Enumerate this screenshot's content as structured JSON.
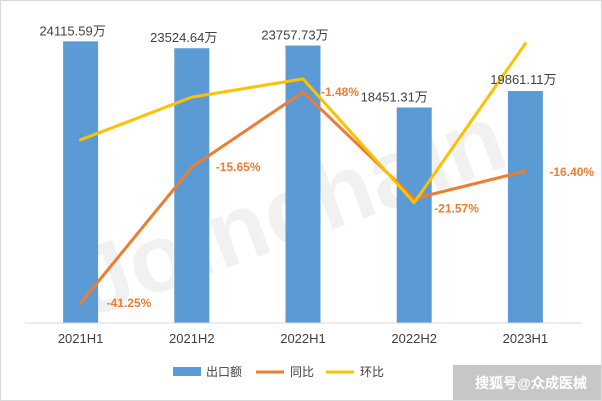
{
  "chart_data": {
    "type": "bar",
    "categories": [
      "2021H1",
      "2021H2",
      "2022H1",
      "2022H2",
      "2023H1"
    ],
    "series": [
      {
        "name": "出口额",
        "type": "bar",
        "values": [
          24115.59,
          23524.64,
          23757.73,
          18451.31,
          19861.11
        ],
        "labels": [
          "24115.59万",
          "23524.64万",
          "23757.73万",
          "18451.31万",
          "19861.11万"
        ]
      },
      {
        "name": "同比",
        "type": "line",
        "values": [
          -41.25,
          -15.65,
          -1.48,
          -21.57,
          -16.4
        ],
        "labels": [
          "-41.25%",
          "-15.65%",
          "-1.48%",
          "-21.57%",
          "-16.40%"
        ]
      },
      {
        "name": "环比",
        "type": "line",
        "values": [
          -10.5,
          -2.45,
          0.99,
          -22.34,
          7.64
        ]
      }
    ],
    "primary_ylim": [
      0,
      25000
    ],
    "secondary_ylim": [
      -45,
      10
    ],
    "grid": false,
    "legend_position": "bottom",
    "colors": {
      "bar": "#5b9bd5",
      "yoy": "#ed7d31",
      "mom": "#ffc000"
    },
    "watermark": "Joinchain",
    "credit": "搜狐号@众成医械"
  }
}
